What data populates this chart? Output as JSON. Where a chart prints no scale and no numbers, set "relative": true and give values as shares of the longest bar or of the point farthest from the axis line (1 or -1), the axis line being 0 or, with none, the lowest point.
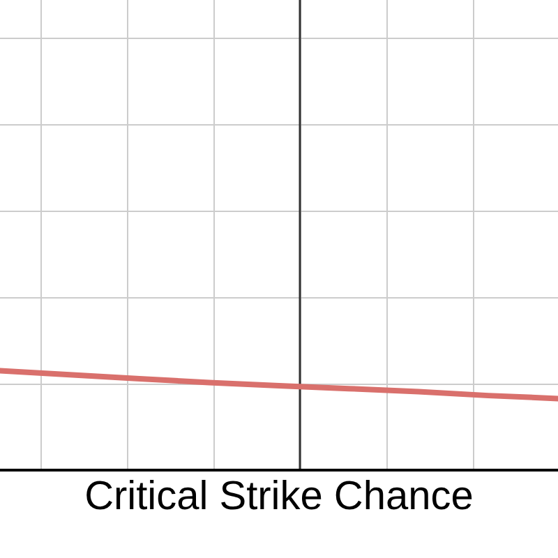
{
  "chart_data": {
    "type": "line",
    "xlabel": "Critical Strike Chance",
    "relative": true,
    "grid": true,
    "legend": false,
    "marker": "none",
    "line_style": "solid",
    "categories": [
      null,
      null,
      null,
      null,
      null,
      null,
      null,
      null,
      null
    ],
    "series": [
      {
        "color": "#d9706c",
        "values": [
          1,
          0.96,
          0.92,
          0.88,
          0.85,
          0.82,
          0.79,
          0.75,
          0.72
        ]
      }
    ]
  }
}
